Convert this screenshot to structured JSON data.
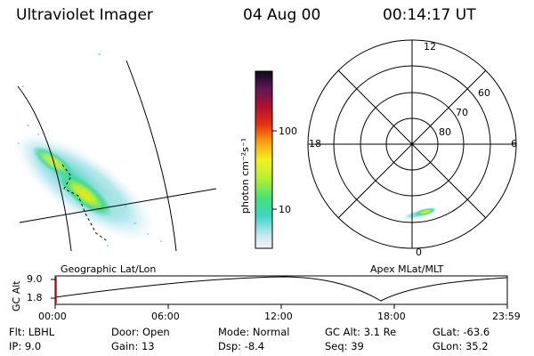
{
  "header": {
    "instrument": "Ultraviolet Imager",
    "date": "04 Aug 00",
    "time": "00:14:17 UT"
  },
  "colorbar": {
    "label": "photon cm⁻²s⁻¹",
    "ticks": [
      "100",
      "10"
    ]
  },
  "polar": {
    "mlt_labels": [
      "12",
      "18",
      "6",
      "0"
    ],
    "lat_labels": [
      "60",
      "70",
      "80"
    ]
  },
  "panels": {
    "left_caption": "Geographic Lat/Lon",
    "right_caption": "Apex MLat/MLT"
  },
  "altitude_plot": {
    "ylabel": "GC Alt",
    "yticks": [
      "9.0",
      "1.8"
    ],
    "xticks": [
      "00:00",
      "06:00",
      "12:00",
      "18:00",
      "23:59"
    ]
  },
  "footer": {
    "row1": [
      {
        "label": "Flt:",
        "value": "LBHL"
      },
      {
        "label": "Door:",
        "value": "Open"
      },
      {
        "label": "Mode:",
        "value": "Normal"
      },
      {
        "label": "GC Alt:",
        "value": "3.1 Re"
      },
      {
        "label": "GLat:",
        "value": "-63.6"
      }
    ],
    "row2": [
      {
        "label": "IP:",
        "value": "9.0"
      },
      {
        "label": "Gain:",
        "value": "13"
      },
      {
        "label": "Dsp:",
        "value": "-8.4"
      },
      {
        "label": "Seq:",
        "value": "39"
      },
      {
        "label": "GLon:",
        "value": "35.2"
      }
    ]
  }
}
